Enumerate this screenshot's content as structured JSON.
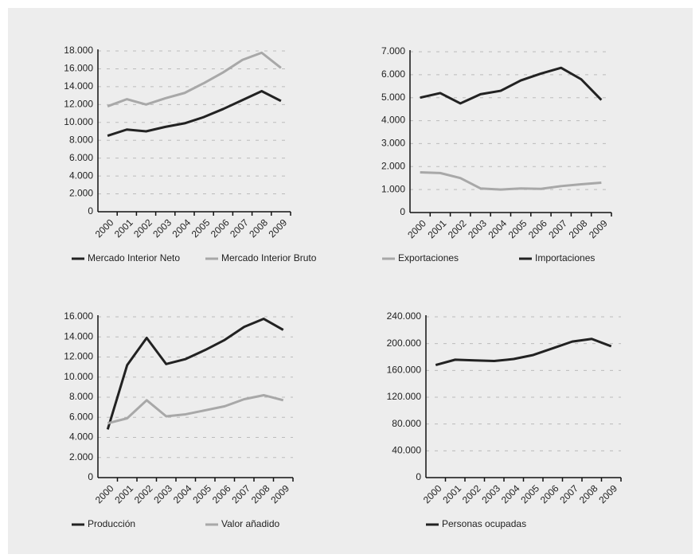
{
  "chart_data": [
    {
      "type": "line",
      "categories": [
        "2000",
        "2001",
        "2002",
        "2003",
        "2004",
        "2005",
        "2006",
        "2007",
        "2008",
        "2009"
      ],
      "series": [
        {
          "name": "Mercado Interior Neto",
          "color": "#222222",
          "values": [
            8500,
            9200,
            9000,
            9500,
            9900,
            10600,
            11500,
            12500,
            13500,
            12400
          ]
        },
        {
          "name": "Mercado Interior Bruto",
          "color": "#a8a8a8",
          "values": [
            11800,
            12600,
            12000,
            12700,
            13300,
            14400,
            15600,
            17000,
            17800,
            16100
          ]
        }
      ],
      "ylim": [
        0,
        18000
      ],
      "yticks": [
        0,
        {
          "value": 2000,
          "label": "2.000"
        },
        {
          "value": 4000,
          "label": "4.000"
        },
        {
          "value": 6000,
          "label": "6.000"
        },
        {
          "value": 8000,
          "label": "8.000"
        },
        {
          "value": 10000,
          "label": "10.000"
        },
        {
          "value": 12000,
          "label": "12.000"
        },
        {
          "value": 14000,
          "label": "14.000"
        },
        {
          "value": 16000,
          "label": "16.000"
        },
        {
          "value": 18000,
          "label": "18.000"
        }
      ],
      "grid": true
    },
    {
      "type": "line",
      "categories": [
        "2000",
        "2001",
        "2002",
        "2003",
        "2004",
        "2005",
        "2006",
        "2007",
        "2008",
        "2009"
      ],
      "series": [
        {
          "name": "Exportaciones",
          "color": "#a8a8a8",
          "values": [
            1750,
            1720,
            1500,
            1050,
            1000,
            1050,
            1030,
            1150,
            1230,
            1300
          ]
        },
        {
          "name": "Importaciones",
          "color": "#222222",
          "values": [
            5000,
            5200,
            4750,
            5150,
            5300,
            5750,
            6050,
            6300,
            5800,
            4900
          ]
        }
      ],
      "ylim": [
        0,
        7000
      ],
      "yticks": [
        0,
        {
          "value": 1000,
          "label": "1.000"
        },
        {
          "value": 2000,
          "label": "2.000"
        },
        {
          "value": 3000,
          "label": "3.000"
        },
        {
          "value": 4000,
          "label": "4.000"
        },
        {
          "value": 5000,
          "label": "5.000"
        },
        {
          "value": 6000,
          "label": "6.000"
        },
        {
          "value": 7000,
          "label": "7.000"
        }
      ],
      "grid": true
    },
    {
      "type": "line",
      "categories": [
        "2000",
        "2001",
        "2002",
        "2003",
        "2004",
        "2005",
        "2006",
        "2007",
        "2008",
        "2009"
      ],
      "series": [
        {
          "name": "Producción",
          "color": "#222222",
          "values": [
            4800,
            11200,
            13900,
            11300,
            11800,
            12700,
            13700,
            15000,
            15800,
            14700
          ]
        },
        {
          "name": "Valor añadido",
          "color": "#a8a8a8",
          "values": [
            5400,
            5900,
            7700,
            6100,
            6300,
            6700,
            7100,
            7800,
            8200,
            7700
          ]
        }
      ],
      "ylim": [
        0,
        16000
      ],
      "yticks": [
        0,
        {
          "value": 2000,
          "label": "2.000"
        },
        {
          "value": 4000,
          "label": "4.000"
        },
        {
          "value": 6000,
          "label": "6.000"
        },
        {
          "value": 8000,
          "label": "8.000"
        },
        {
          "value": 10000,
          "label": "10.000"
        },
        {
          "value": 12000,
          "label": "12.000"
        },
        {
          "value": 14000,
          "label": "14.000"
        },
        {
          "value": 16000,
          "label": "16.000"
        }
      ],
      "grid": true
    },
    {
      "type": "line",
      "categories": [
        "2000",
        "2001",
        "2002",
        "2003",
        "2004",
        "2005",
        "2006",
        "2007",
        "2008",
        "2009"
      ],
      "series": [
        {
          "name": "Personas ocupadas",
          "color": "#222222",
          "values": [
            168000,
            176000,
            175000,
            174000,
            177000,
            183000,
            193000,
            203000,
            207000,
            196000
          ]
        }
      ],
      "ylim": [
        0,
        240000
      ],
      "yticks": [
        0,
        {
          "value": 40000,
          "label": "40.000"
        },
        {
          "value": 80000,
          "label": "80.000"
        },
        {
          "value": 120000,
          "label": "120.000"
        },
        {
          "value": 160000,
          "label": "160.000"
        },
        {
          "value": 200000,
          "label": "200.000"
        },
        {
          "value": 240000,
          "label": "240.000"
        }
      ],
      "grid": true
    }
  ]
}
